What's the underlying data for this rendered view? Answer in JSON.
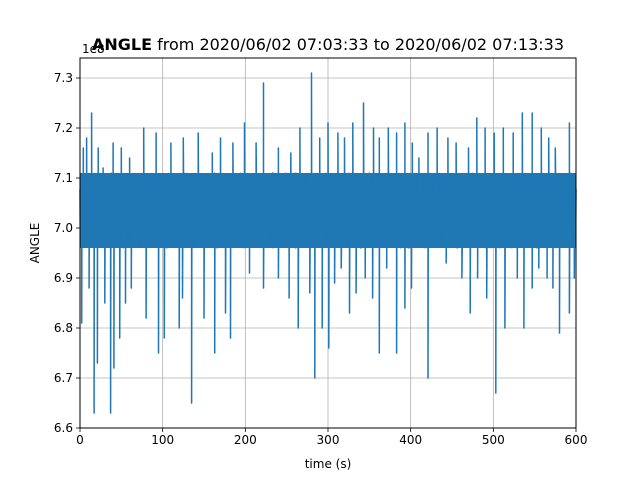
{
  "chart_data": {
    "type": "line",
    "title_bold": "ANGLE",
    "title_rest": " from 2020/06/02 07:03:33 to 2020/06/02 07:13:33",
    "xlabel": "time (s)",
    "ylabel": "ANGLE",
    "offset_label": "1e8",
    "xlim": [
      0,
      600
    ],
    "ylim": [
      6.6,
      7.34
    ],
    "xticks": [
      0,
      100,
      200,
      300,
      400,
      500,
      600
    ],
    "xtick_labels": [
      "0",
      "100",
      "200",
      "300",
      "400",
      "500",
      "600"
    ],
    "yticks": [
      6.6,
      6.7,
      6.8,
      6.9,
      7.0,
      7.1,
      7.2,
      7.3
    ],
    "ytick_labels": [
      "6.6",
      "6.7",
      "6.8",
      "6.9",
      "7.0",
      "7.1",
      "7.2",
      "7.3"
    ],
    "grid": true,
    "series_color": "#1f77b4",
    "band": {
      "center": 7.04,
      "low": 6.96,
      "high": 7.11
    },
    "spikes_up": [
      [
        4,
        7.16
      ],
      [
        8,
        7.18
      ],
      [
        14,
        7.23
      ],
      [
        22,
        7.16
      ],
      [
        28,
        7.12
      ],
      [
        40,
        7.17
      ],
      [
        50,
        7.16
      ],
      [
        60,
        7.14
      ],
      [
        77,
        7.2
      ],
      [
        92,
        7.19
      ],
      [
        110,
        7.17
      ],
      [
        125,
        7.18
      ],
      [
        143,
        7.19
      ],
      [
        160,
        7.15
      ],
      [
        170,
        7.18
      ],
      [
        185,
        7.17
      ],
      [
        199,
        7.21
      ],
      [
        213,
        7.17
      ],
      [
        222,
        7.29
      ],
      [
        240,
        7.16
      ],
      [
        255,
        7.15
      ],
      [
        266,
        7.2
      ],
      [
        280,
        7.31
      ],
      [
        290,
        7.18
      ],
      [
        300,
        7.21
      ],
      [
        312,
        7.19
      ],
      [
        320,
        7.18
      ],
      [
        330,
        7.21
      ],
      [
        343,
        7.25
      ],
      [
        355,
        7.2
      ],
      [
        362,
        7.18
      ],
      [
        373,
        7.2
      ],
      [
        383,
        7.19
      ],
      [
        393,
        7.21
      ],
      [
        402,
        7.17
      ],
      [
        410,
        7.14
      ],
      [
        421,
        7.19
      ],
      [
        432,
        7.2
      ],
      [
        445,
        7.18
      ],
      [
        455,
        7.17
      ],
      [
        470,
        7.16
      ],
      [
        480,
        7.22
      ],
      [
        490,
        7.2
      ],
      [
        501,
        7.19
      ],
      [
        512,
        7.2
      ],
      [
        524,
        7.19
      ],
      [
        535,
        7.23
      ],
      [
        547,
        7.23
      ],
      [
        558,
        7.2
      ],
      [
        567,
        7.18
      ],
      [
        575,
        7.16
      ],
      [
        592,
        7.21
      ]
    ],
    "spikes_down": [
      [
        2,
        6.81
      ],
      [
        11,
        6.88
      ],
      [
        17,
        6.63
      ],
      [
        21,
        6.73
      ],
      [
        30,
        6.85
      ],
      [
        37,
        6.63
      ],
      [
        41,
        6.72
      ],
      [
        48,
        6.78
      ],
      [
        55,
        6.85
      ],
      [
        62,
        6.88
      ],
      [
        80,
        6.82
      ],
      [
        95,
        6.75
      ],
      [
        102,
        6.78
      ],
      [
        120,
        6.8
      ],
      [
        124,
        6.86
      ],
      [
        135,
        6.65
      ],
      [
        150,
        6.82
      ],
      [
        163,
        6.75
      ],
      [
        176,
        6.83
      ],
      [
        182,
        6.78
      ],
      [
        205,
        6.91
      ],
      [
        222,
        6.88
      ],
      [
        240,
        6.9
      ],
      [
        253,
        6.86
      ],
      [
        264,
        6.8
      ],
      [
        278,
        6.87
      ],
      [
        284,
        6.7
      ],
      [
        293,
        6.8
      ],
      [
        301,
        6.76
      ],
      [
        308,
        6.89
      ],
      [
        316,
        6.92
      ],
      [
        326,
        6.83
      ],
      [
        334,
        6.87
      ],
      [
        345,
        6.9
      ],
      [
        354,
        6.86
      ],
      [
        362,
        6.75
      ],
      [
        371,
        6.92
      ],
      [
        383,
        6.75
      ],
      [
        393,
        6.84
      ],
      [
        401,
        6.88
      ],
      [
        421,
        6.7
      ],
      [
        443,
        6.93
      ],
      [
        462,
        6.9
      ],
      [
        472,
        6.83
      ],
      [
        481,
        6.9
      ],
      [
        492,
        6.86
      ],
      [
        503,
        6.67
      ],
      [
        514,
        6.8
      ],
      [
        529,
        6.9
      ],
      [
        537,
        6.8
      ],
      [
        547,
        6.88
      ],
      [
        555,
        6.92
      ],
      [
        565,
        6.9
      ],
      [
        572,
        6.88
      ],
      [
        580,
        6.79
      ],
      [
        592,
        6.83
      ],
      [
        598,
        6.9
      ]
    ]
  }
}
